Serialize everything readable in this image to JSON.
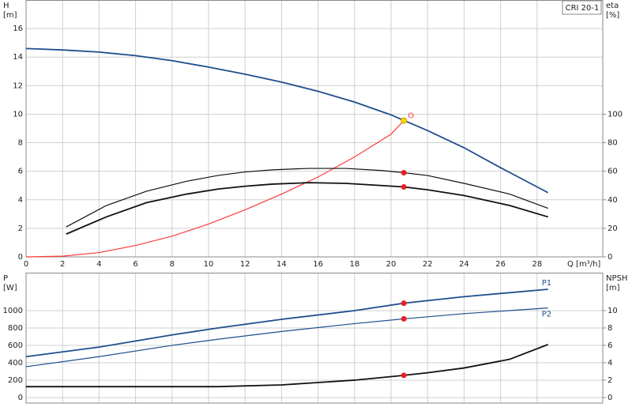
{
  "chart_data": [
    {
      "type": "line",
      "y_label": "H",
      "y_unit": "[m]",
      "y2_label": "eta",
      "y2_unit": "[%]",
      "x_label": "Q [m³/h]",
      "box_label": "CRI 20-1",
      "annotation": "O",
      "xlim": [
        0,
        31.6
      ],
      "xticks": [
        0,
        2,
        4,
        6,
        8,
        10,
        12,
        14,
        16,
        18,
        20,
        22,
        24,
        26,
        28
      ],
      "ylim": [
        0,
        18
      ],
      "yticks": [
        0,
        2,
        4,
        6,
        8,
        10,
        12,
        14,
        16
      ],
      "y2lim": [
        0,
        180
      ],
      "y2ticks": [
        0,
        20,
        40,
        60,
        80,
        100
      ],
      "grid": true,
      "series": [
        {
          "color": "#1f4e8c",
          "x": [
            0,
            2,
            4,
            6,
            8,
            10,
            12,
            14,
            16,
            18,
            20,
            22,
            24,
            26,
            28.6
          ],
          "values": [
            14.6,
            14.5,
            14.35,
            14.1,
            13.75,
            13.3,
            12.8,
            12.25,
            11.6,
            10.85,
            9.95,
            8.85,
            7.65,
            6.25,
            4.5
          ]
        },
        {
          "color": "#ff3b3b",
          "axis": "y2",
          "x": [
            0,
            2,
            4,
            6,
            8,
            10,
            12,
            14,
            16,
            18,
            20,
            20.7
          ],
          "values": [
            0,
            0.5,
            3,
            8,
            14.5,
            23,
            33,
            44,
            56,
            70,
            86,
            95.5
          ]
        },
        {
          "color": "#111111",
          "axis": "y2",
          "x": [
            2.2,
            4.4,
            6.6,
            8.8,
            10.5,
            12,
            13.5,
            15.5,
            17.5,
            19.5,
            20.7,
            22,
            24,
            26.5,
            28.6
          ],
          "values": [
            21,
            36,
            46,
            53,
            57,
            59.5,
            61,
            62,
            62,
            60.5,
            59,
            57,
            51.5,
            44,
            34
          ]
        },
        {
          "color": "#111111",
          "axis": "y2",
          "x": [
            2.2,
            4.4,
            6.6,
            8.8,
            10.5,
            12,
            13.5,
            15.5,
            17.5,
            19.5,
            20.7,
            22,
            24,
            26.5,
            28.6
          ],
          "values": [
            16,
            28,
            38,
            44,
            47.5,
            49.5,
            51,
            52,
            51.5,
            50,
            49,
            47,
            43,
            36,
            28
          ]
        }
      ],
      "points": [
        {
          "x": 20.7,
          "y": 9.55,
          "color": "#ffd700"
        },
        {
          "x": 20.7,
          "y": 59,
          "axis": "y2",
          "color": "#e8202a"
        },
        {
          "x": 20.7,
          "y": 49,
          "axis": "y2",
          "color": "#e8202a"
        }
      ]
    },
    {
      "type": "line",
      "y_label": "P",
      "y_unit": "[W]",
      "y2_label": "NPSH",
      "y2_unit": "[m]",
      "xlim": [
        0,
        31.6
      ],
      "xticks": [
        0,
        2,
        4,
        6,
        8,
        10,
        12,
        14,
        16,
        18,
        20,
        22,
        24,
        26,
        28
      ],
      "ylim": [
        -64,
        1436
      ],
      "yticks": [
        0,
        200,
        400,
        600,
        800,
        1000
      ],
      "y2lim": [
        -0.64,
        14.36
      ],
      "y2ticks": [
        0,
        2,
        4,
        6,
        8,
        10
      ],
      "grid": true,
      "series": [
        {
          "name": "P1",
          "color": "#1f4e8c",
          "x": [
            0,
            4,
            8,
            10.5,
            14,
            18,
            20.7,
            24,
            28.6
          ],
          "values": [
            470,
            580,
            720,
            800,
            900,
            1000,
            1085,
            1160,
            1245
          ]
        },
        {
          "name": "P2",
          "color": "#1f4e8c",
          "x": [
            0,
            4,
            8,
            10.5,
            14,
            18,
            20.7,
            24,
            28.6
          ],
          "values": [
            355,
            470,
            600,
            670,
            760,
            850,
            905,
            965,
            1030
          ]
        },
        {
          "color": "#111111",
          "axis": "y2",
          "x": [
            0,
            10.5,
            14,
            18,
            20.7,
            22,
            24,
            26.5,
            28.6
          ],
          "values": [
            1.25,
            1.25,
            1.45,
            2.0,
            2.55,
            2.85,
            3.4,
            4.4,
            6.1
          ]
        }
      ],
      "points": [
        {
          "x": 20.7,
          "y": 1085,
          "color": "#e8202a"
        },
        {
          "x": 20.7,
          "y": 905,
          "color": "#e8202a"
        },
        {
          "x": 20.7,
          "y": 2.55,
          "axis": "y2",
          "color": "#e8202a"
        }
      ]
    }
  ]
}
